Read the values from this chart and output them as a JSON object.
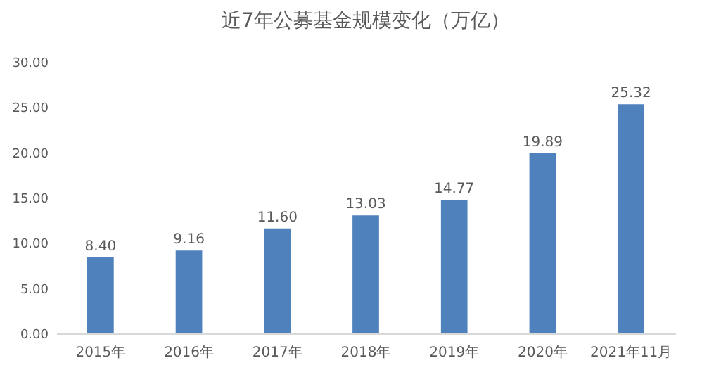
{
  "chart_data": {
    "type": "bar",
    "title": "近7年公募基金规模变化（万亿）",
    "categories": [
      "2015年",
      "2016年",
      "2017年",
      "2018年",
      "2019年",
      "2020年",
      "2021年11月"
    ],
    "values": [
      8.4,
      9.16,
      11.6,
      13.03,
      14.77,
      19.89,
      25.32
    ],
    "color": "#4f81bd",
    "ylim": [
      0,
      30
    ],
    "yticks": [
      {
        "value": 0,
        "label": "0.00"
      },
      {
        "value": 5,
        "label": "5.00"
      },
      {
        "value": 10,
        "label": "10.00"
      },
      {
        "value": 15,
        "label": "15.00"
      },
      {
        "value": 20,
        "label": "20.00"
      },
      {
        "value": 25,
        "label": "25.00"
      },
      {
        "value": 30,
        "label": "30.00"
      }
    ],
    "value_labels": [
      "8.40",
      "9.16",
      "11.60",
      "13.03",
      "14.77",
      "19.89",
      "25.32"
    ],
    "grid": false
  }
}
